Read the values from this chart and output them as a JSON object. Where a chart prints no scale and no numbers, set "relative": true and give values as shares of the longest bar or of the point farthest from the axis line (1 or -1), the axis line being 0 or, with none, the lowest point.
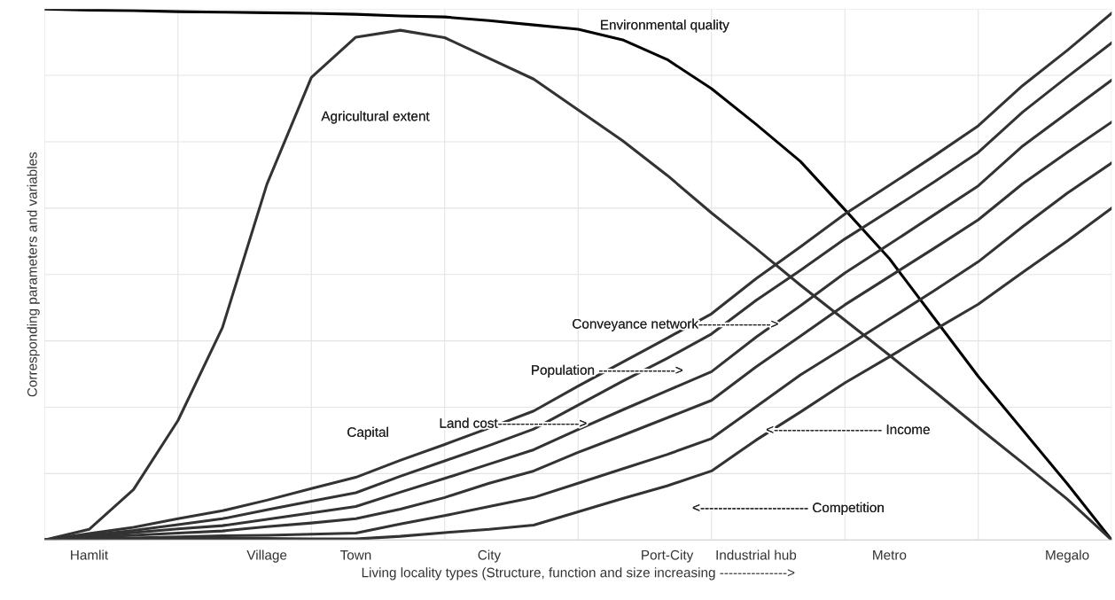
{
  "chart_data": {
    "type": "line",
    "relative": true,
    "xlabel": "Living locality types (Structure, function and size increasing --------------->",
    "ylabel": "Corresponding parameters and variables",
    "categories": [
      null,
      "Hamlit",
      null,
      null,
      null,
      "Village",
      null,
      "Town",
      null,
      null,
      "City",
      null,
      null,
      null,
      "Port-City",
      null,
      "Industrial hub",
      null,
      null,
      "Metro",
      null,
      null,
      null,
      "Megalo",
      null
    ],
    "grid": true,
    "marker": "none",
    "line_style": "solid",
    "series": [
      {
        "color": "#000000",
        "values": [
          1.0,
          0.998,
          0.997,
          0.995,
          0.994,
          0.993,
          0.992,
          0.99,
          0.987,
          0.985,
          0.978,
          0.97,
          0.962,
          0.942,
          0.905,
          0.85,
          0.783,
          0.713,
          0.622,
          0.53,
          0.419,
          0.308,
          0.207,
          0.106,
          0
        ]
      },
      {
        "color": "#333333",
        "values": [
          0,
          0.02,
          0.095,
          0.225,
          0.4,
          0.67,
          0.871,
          0.947,
          0.96,
          0.946,
          0.907,
          0.868,
          0.81,
          0.752,
          0.687,
          0.616,
          0.549,
          0.48,
          0.414,
          0.348,
          0.281,
          0.212,
          0.145,
          0.077,
          0
        ]
      },
      {
        "color": "#333333",
        "values": [
          0,
          0.012,
          0.024,
          0.04,
          0.055,
          0.075,
          0.097,
          0.118,
          0.15,
          0.18,
          0.211,
          0.243,
          0.29,
          0.335,
          0.38,
          0.426,
          0.492,
          0.552,
          0.614,
          0.668,
          0.723,
          0.78,
          0.856,
          0.922,
          0.992
        ]
      },
      {
        "color": "#333333",
        "values": [
          0,
          0.009,
          0.018,
          0.029,
          0.04,
          0.057,
          0.073,
          0.089,
          0.12,
          0.149,
          0.178,
          0.209,
          0.254,
          0.299,
          0.342,
          0.388,
          0.451,
          0.508,
          0.567,
          0.62,
          0.674,
          0.73,
          0.806,
          0.872,
          0.936
        ]
      },
      {
        "color": "#333333",
        "values": [
          0,
          0.007,
          0.014,
          0.021,
          0.027,
          0.039,
          0.051,
          0.063,
          0.09,
          0.116,
          0.143,
          0.17,
          0.208,
          0.245,
          0.281,
          0.317,
          0.382,
          0.441,
          0.503,
          0.557,
          0.612,
          0.667,
          0.742,
          0.804,
          0.866
        ]
      },
      {
        "color": "#333333",
        "values": [
          0,
          0.005,
          0.009,
          0.013,
          0.017,
          0.025,
          0.032,
          0.04,
          0.058,
          0.08,
          0.107,
          0.13,
          0.165,
          0.197,
          0.23,
          0.263,
          0.326,
          0.384,
          0.443,
          0.496,
          0.549,
          0.603,
          0.671,
          0.73,
          0.787
        ]
      },
      {
        "color": "#333333",
        "values": [
          0,
          0.002,
          0.004,
          0.006,
          0.008,
          0.009,
          0.011,
          0.013,
          0.03,
          0.046,
          0.063,
          0.08,
          0.107,
          0.134,
          0.161,
          0.191,
          0.251,
          0.311,
          0.363,
          0.416,
          0.469,
          0.524,
          0.59,
          0.653,
          0.71
        ]
      },
      {
        "color": "#333333",
        "values": [
          0,
          0.001,
          0.002,
          0.003,
          0.003,
          0.003,
          0.002,
          0.002,
          0.007,
          0.014,
          0.02,
          0.028,
          0.053,
          0.078,
          0.102,
          0.13,
          0.188,
          0.241,
          0.296,
          0.345,
          0.395,
          0.444,
          0.504,
          0.563,
          0.625
        ]
      }
    ],
    "annotations": [
      "Environmental quality",
      "Agricultural extent",
      "Conveyance network---------------->",
      "Population ----------------->",
      "Land cost------------------>",
      "Capital",
      "<------------------------ Income",
      "<------------------------ Competition"
    ]
  }
}
